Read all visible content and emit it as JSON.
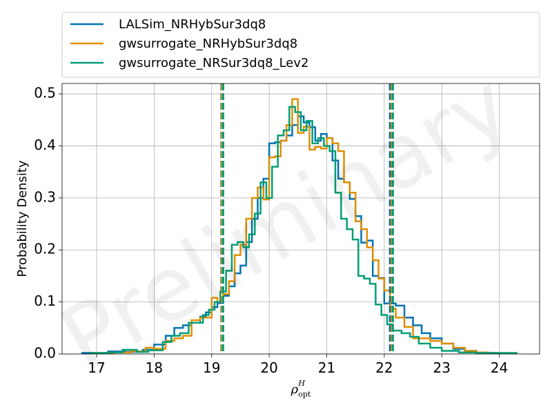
{
  "chart_data": {
    "type": "histogram",
    "xlabel": {
      "base": "ρ",
      "sub": "opt",
      "sup": "H"
    },
    "ylabel": "Probability Density",
    "xlim": [
      16.4,
      24.7
    ],
    "ylim": [
      0,
      0.52
    ],
    "xticks": [
      "17",
      "18",
      "19",
      "20",
      "21",
      "22",
      "23",
      "24"
    ],
    "xtick_values": [
      17,
      18,
      19,
      20,
      21,
      22,
      23,
      24
    ],
    "yticks": [
      "0.0",
      "0.1",
      "0.2",
      "0.3",
      "0.4",
      "0.5"
    ],
    "ytick_values": [
      0.0,
      0.1,
      0.2,
      0.3,
      0.4,
      0.5
    ],
    "grid": true,
    "legend_position": "above plot",
    "watermark": "Preliminary",
    "series": [
      {
        "name": "LALSim_NRHybSur3dq8",
        "color": "#0072b2",
        "edges": [
          16.75,
          17.2,
          17.5,
          17.8,
          18.0,
          18.2,
          18.35,
          18.5,
          18.65,
          18.8,
          18.9,
          19.0,
          19.1,
          19.2,
          19.3,
          19.4,
          19.5,
          19.6,
          19.7,
          19.8,
          19.9,
          20.0,
          20.1,
          20.2,
          20.3,
          20.4,
          20.5,
          20.6,
          20.7,
          20.8,
          20.9,
          21.0,
          21.1,
          21.2,
          21.3,
          21.4,
          21.5,
          21.6,
          21.7,
          21.8,
          21.9,
          22.0,
          22.1,
          22.2,
          22.35,
          22.5,
          22.65,
          22.8,
          23.0,
          23.2,
          23.4,
          23.6,
          23.8,
          24.0
        ],
        "values": [
          0.002,
          0.005,
          0.004,
          0.008,
          0.018,
          0.035,
          0.05,
          0.055,
          0.06,
          0.072,
          0.08,
          0.09,
          0.098,
          0.112,
          0.13,
          0.155,
          0.17,
          0.215,
          0.26,
          0.3,
          0.337,
          0.405,
          0.407,
          0.41,
          0.42,
          0.44,
          0.457,
          0.445,
          0.436,
          0.41,
          0.423,
          0.415,
          0.372,
          0.337,
          0.33,
          0.298,
          0.265,
          0.214,
          0.218,
          0.15,
          0.146,
          0.097,
          0.097,
          0.093,
          0.07,
          0.055,
          0.04,
          0.03,
          0.02,
          0.01,
          0.006,
          0.003,
          0.002
        ]
      },
      {
        "name": "gwsurrogate_NRHybSur3dq8",
        "color": "#de8f05",
        "edges": [
          17.0,
          17.3,
          17.6,
          17.85,
          18.0,
          18.2,
          18.35,
          18.5,
          18.65,
          18.8,
          18.9,
          19.0,
          19.1,
          19.2,
          19.3,
          19.4,
          19.5,
          19.6,
          19.7,
          19.8,
          19.9,
          20.0,
          20.1,
          20.2,
          20.3,
          20.4,
          20.5,
          20.6,
          20.7,
          20.8,
          20.9,
          21.0,
          21.1,
          21.2,
          21.3,
          21.4,
          21.5,
          21.6,
          21.7,
          21.8,
          21.9,
          22.0,
          22.1,
          22.2,
          22.35,
          22.5,
          22.65,
          22.8,
          23.0,
          23.2,
          23.4,
          23.6,
          23.8,
          24.0
        ],
        "values": [
          0.002,
          0.003,
          0.005,
          0.012,
          0.01,
          0.025,
          0.03,
          0.035,
          0.065,
          0.07,
          0.07,
          0.108,
          0.1,
          0.115,
          0.14,
          0.19,
          0.21,
          0.26,
          0.3,
          0.32,
          0.297,
          0.378,
          0.38,
          0.41,
          0.44,
          0.49,
          0.425,
          0.437,
          0.393,
          0.398,
          0.395,
          0.415,
          0.405,
          0.39,
          0.33,
          0.31,
          0.255,
          0.24,
          0.205,
          0.18,
          0.145,
          0.122,
          0.087,
          0.07,
          0.052,
          0.03,
          0.03,
          0.025,
          0.02,
          0.012,
          0.006,
          0.003,
          0.002
        ]
      },
      {
        "name": "gwsurrogate_NRSur3dq8_Lev2",
        "color": "#029e73",
        "edges": [
          16.9,
          17.2,
          17.45,
          17.7,
          17.9,
          18.15,
          18.3,
          18.45,
          18.6,
          18.75,
          18.85,
          18.95,
          19.05,
          19.15,
          19.25,
          19.35,
          19.45,
          19.55,
          19.65,
          19.75,
          19.85,
          19.95,
          20.05,
          20.15,
          20.25,
          20.35,
          20.45,
          20.55,
          20.65,
          20.75,
          20.85,
          20.95,
          21.05,
          21.15,
          21.25,
          21.35,
          21.45,
          21.55,
          21.65,
          21.75,
          21.85,
          21.95,
          22.05,
          22.15,
          22.3,
          22.45,
          22.6,
          22.8,
          23.0,
          23.3,
          23.6,
          24.0,
          24.3
        ],
        "values": [
          0.002,
          0.003,
          0.008,
          0.004,
          0.007,
          0.023,
          0.035,
          0.04,
          0.06,
          0.06,
          0.075,
          0.085,
          0.1,
          0.12,
          0.16,
          0.21,
          0.215,
          0.205,
          0.23,
          0.27,
          0.33,
          0.3,
          0.36,
          0.42,
          0.43,
          0.475,
          0.465,
          0.43,
          0.448,
          0.405,
          0.415,
          0.4,
          0.39,
          0.31,
          0.26,
          0.24,
          0.22,
          0.15,
          0.145,
          0.135,
          0.095,
          0.075,
          0.057,
          0.045,
          0.04,
          0.033,
          0.02,
          0.012,
          0.006,
          0.003,
          0.002,
          0.002
        ]
      }
    ],
    "vlines": [
      {
        "x": 19.17,
        "color": "#0072b2"
      },
      {
        "x": 22.1,
        "color": "#0072b2"
      },
      {
        "x": 19.18,
        "color": "#de8f05"
      },
      {
        "x": 22.13,
        "color": "#de8f05"
      },
      {
        "x": 19.2,
        "color": "#029e73"
      },
      {
        "x": 22.15,
        "color": "#029e73"
      }
    ]
  }
}
